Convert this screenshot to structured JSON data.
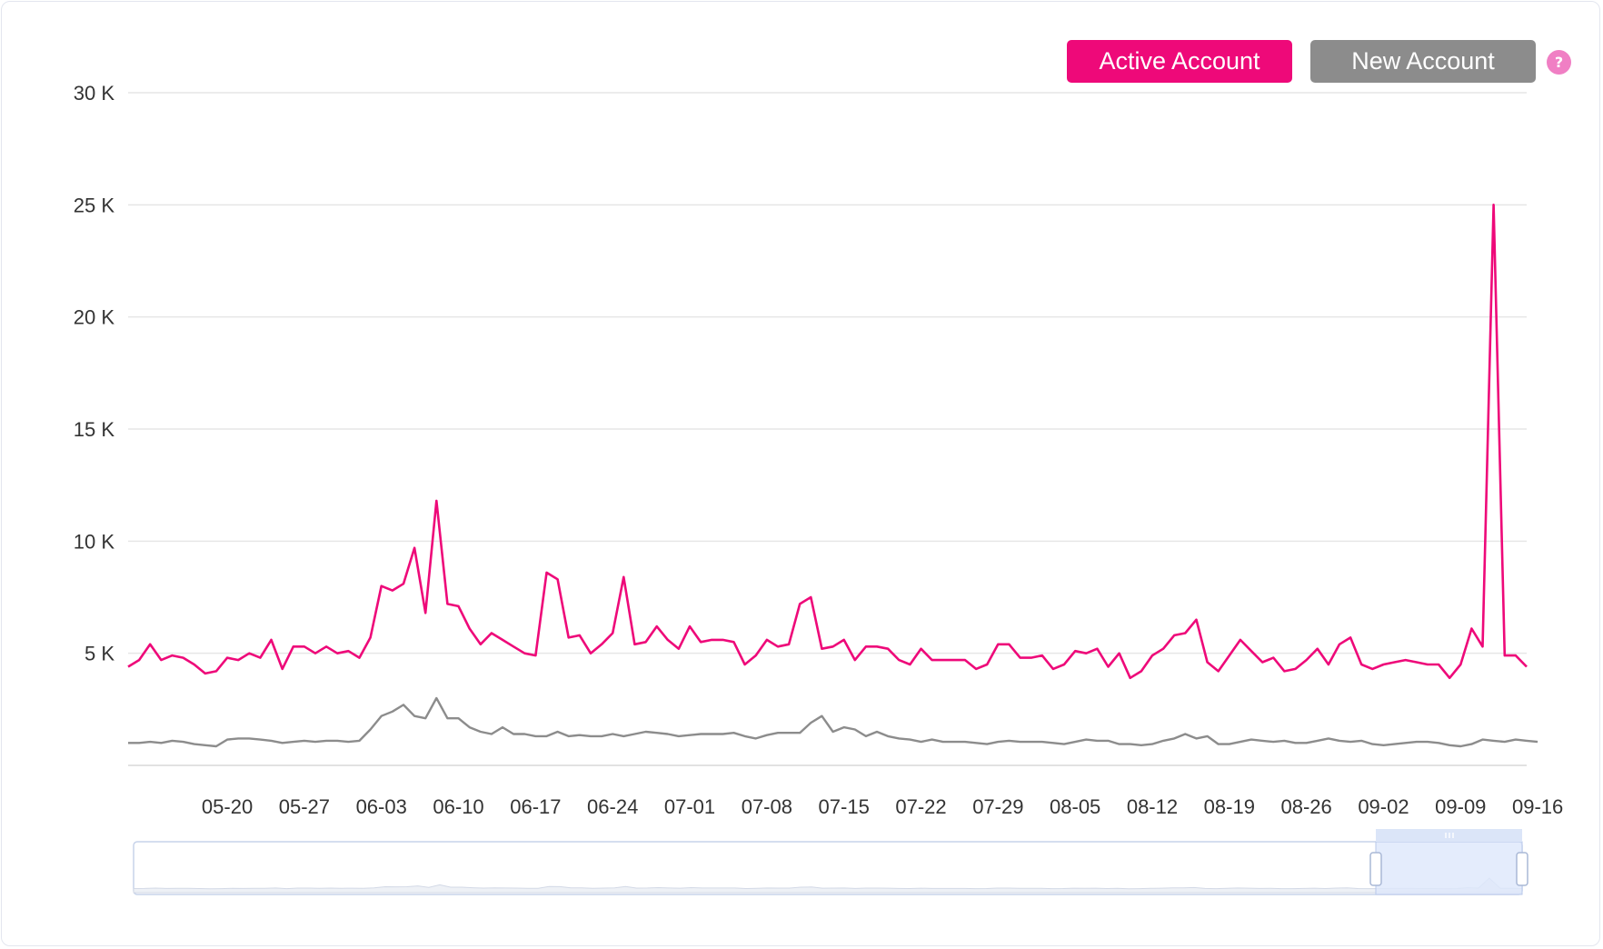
{
  "legend": {
    "active_label": "Active Account",
    "new_label": "New Account",
    "help_glyph": "?",
    "help_icon": "question-circle-icon"
  },
  "colors": {
    "active": "#ee0979",
    "new": "#8c8c8c",
    "help": "#f07fc4",
    "grid": "#e6e6e6",
    "zoom_fill": "#dde7fb",
    "zoom_border": "#c7d3ea"
  },
  "chart_data": {
    "type": "line",
    "title": "",
    "xlabel": "",
    "ylabel": "",
    "ylim": [
      0,
      30000
    ],
    "yticks": [
      5000,
      10000,
      15000,
      20000,
      25000,
      30000
    ],
    "ytick_labels": [
      "5 K",
      "10 K",
      "15 K",
      "20 K",
      "25 K",
      "30 K"
    ],
    "x_start": "05-11",
    "x_end": "09-16",
    "xticks": [
      "05-20",
      "05-27",
      "06-03",
      "06-10",
      "06-17",
      "06-24",
      "07-01",
      "07-08",
      "07-15",
      "07-22",
      "07-29",
      "08-05",
      "08-12",
      "08-19",
      "08-26",
      "09-02",
      "09-09",
      "09-16"
    ],
    "grid": true,
    "legend_position": "top-right",
    "series": [
      {
        "name": "Active Account",
        "values": [
          4400,
          4700,
          5400,
          4700,
          4900,
          4800,
          4500,
          4100,
          4200,
          4800,
          4700,
          5000,
          4800,
          5600,
          4300,
          5300,
          5300,
          5000,
          5300,
          5000,
          5100,
          4800,
          5700,
          8000,
          7800,
          8100,
          9700,
          6800,
          11800,
          7200,
          7100,
          6100,
          5400,
          5900,
          5600,
          5300,
          5000,
          4900,
          8600,
          8300,
          5700,
          5800,
          5000,
          5400,
          5900,
          8400,
          5400,
          5500,
          6200,
          5600,
          5200,
          6200,
          5500,
          5600,
          5600,
          5500,
          4500,
          4900,
          5600,
          5300,
          5400,
          7200,
          7500,
          5200,
          5300,
          5600,
          4700,
          5300,
          5300,
          5200,
          4700,
          4500,
          5200,
          4700,
          4700,
          4700,
          4700,
          4300,
          4500,
          5400,
          5400,
          4800,
          4800,
          4900,
          4300,
          4500,
          5100,
          5000,
          5200,
          4400,
          5000,
          3900,
          4200,
          4900,
          5200,
          5800,
          5900,
          6500,
          4600,
          4200,
          4900,
          5600,
          5100,
          4600,
          4800,
          4200,
          4300,
          4700,
          5200,
          4500,
          5400,
          5700,
          4500,
          4300,
          4500,
          4600,
          4700,
          4600,
          4500,
          4500,
          3900,
          4500,
          6100,
          5300,
          25000,
          4900,
          4900,
          4400
        ]
      },
      {
        "name": "New Account",
        "values": [
          1000,
          1000,
          1050,
          1000,
          1100,
          1050,
          950,
          900,
          850,
          1150,
          1200,
          1200,
          1150,
          1100,
          1000,
          1050,
          1100,
          1050,
          1100,
          1100,
          1050,
          1100,
          1600,
          2200,
          2400,
          2700,
          2200,
          2100,
          3000,
          2100,
          2100,
          1700,
          1500,
          1400,
          1700,
          1400,
          1400,
          1300,
          1300,
          1500,
          1300,
          1350,
          1300,
          1300,
          1400,
          1300,
          1400,
          1500,
          1450,
          1400,
          1300,
          1350,
          1400,
          1400,
          1400,
          1450,
          1300,
          1200,
          1350,
          1450,
          1450,
          1450,
          1900,
          2200,
          1500,
          1700,
          1600,
          1300,
          1500,
          1300,
          1200,
          1150,
          1050,
          1150,
          1050,
          1050,
          1050,
          1000,
          950,
          1050,
          1100,
          1050,
          1050,
          1050,
          1000,
          950,
          1050,
          1150,
          1100,
          1100,
          950,
          950,
          900,
          950,
          1100,
          1200,
          1400,
          1200,
          1300,
          950,
          950,
          1050,
          1150,
          1100,
          1050,
          1100,
          1000,
          1000,
          1100,
          1200,
          1100,
          1050,
          1100,
          950,
          900,
          950,
          1000,
          1050,
          1050,
          1000,
          900,
          850,
          950,
          1150,
          1100,
          1050,
          1150,
          1100,
          1050
        ]
      }
    ]
  }
}
